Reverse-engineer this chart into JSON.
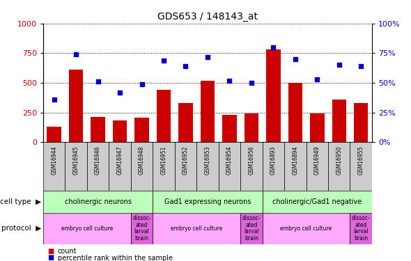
{
  "title": "GDS653 / 148143_at",
  "samples": [
    "GSM16944",
    "GSM16945",
    "GSM16946",
    "GSM16947",
    "GSM16948",
    "GSM16951",
    "GSM16952",
    "GSM16953",
    "GSM16954",
    "GSM16956",
    "GSM16893",
    "GSM16894",
    "GSM16949",
    "GSM16950",
    "GSM16955"
  ],
  "count_values": [
    130,
    610,
    215,
    185,
    210,
    440,
    330,
    520,
    230,
    240,
    780,
    500,
    240,
    360,
    330
  ],
  "percentile_values": [
    36,
    74,
    51,
    42,
    49,
    69,
    64,
    72,
    52,
    50,
    80,
    70,
    53,
    65,
    64
  ],
  "bar_color": "#cc0000",
  "dot_color": "#0000cc",
  "ylim_left": [
    0,
    1000
  ],
  "ylim_right": [
    0,
    100
  ],
  "yticks_left": [
    0,
    250,
    500,
    750,
    1000
  ],
  "yticks_right": [
    0,
    25,
    50,
    75,
    100
  ],
  "cell_type_groups": [
    {
      "label": "cholinergic neurons",
      "start": 0,
      "end": 5
    },
    {
      "label": "Gad1 expressing neurons",
      "start": 5,
      "end": 10
    },
    {
      "label": "cholinergic/Gad1 negative",
      "start": 10,
      "end": 15
    }
  ],
  "protocol_groups": [
    {
      "label": "embryo cell culture",
      "start": 0,
      "end": 4,
      "type": "main"
    },
    {
      "label": "dissoc-\nated\nlarval\nbrain",
      "start": 4,
      "end": 5,
      "type": "alt"
    },
    {
      "label": "embryo cell culture",
      "start": 5,
      "end": 9,
      "type": "main"
    },
    {
      "label": "dissoc-\nated\nlarval\nbrain",
      "start": 9,
      "end": 10,
      "type": "alt"
    },
    {
      "label": "embryo cell culture",
      "start": 10,
      "end": 14,
      "type": "main"
    },
    {
      "label": "dissoc-\nated\nlarval\nbrain",
      "start": 14,
      "end": 15,
      "type": "alt"
    }
  ],
  "cell_type_row_label": "cell type",
  "protocol_row_label": "protocol",
  "legend_count_label": "count",
  "legend_pct_label": "percentile rank within the sample",
  "bar_color_hex": "#cc0000",
  "dot_color_hex": "#0000cc",
  "cell_type_color": "#bbffbb",
  "protocol_main_color": "#ffaaff",
  "protocol_alt_color": "#dd66dd",
  "xtick_bg_color": "#cccccc",
  "title_fontsize": 10
}
